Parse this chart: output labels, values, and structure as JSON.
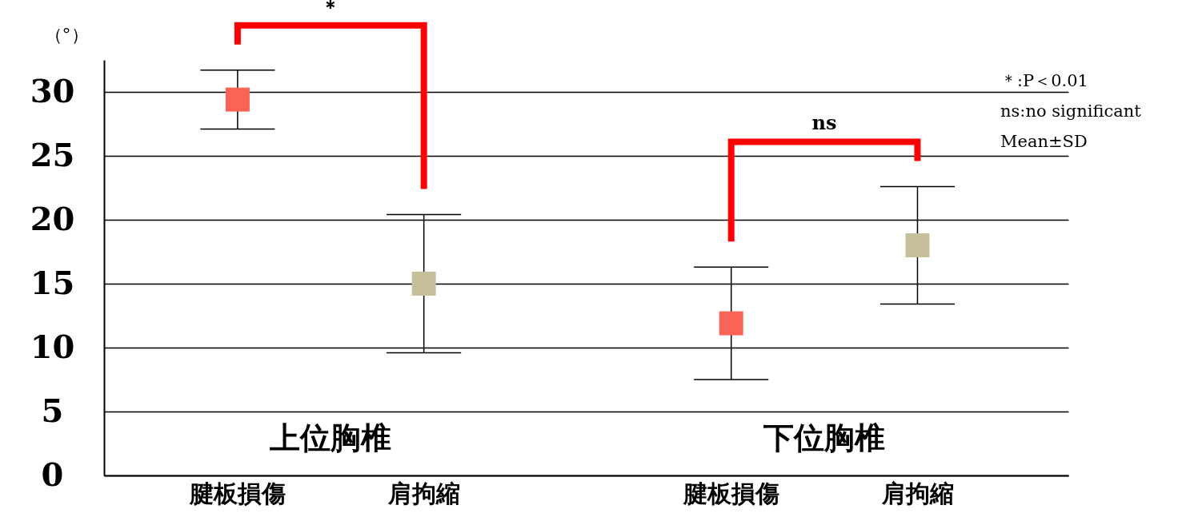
{
  "chart_data": {
    "type": "scatter",
    "marker": "square",
    "ylabel": "（°）",
    "categories": [
      "腱板損傷",
      "肩拘縮",
      "腱板損傷",
      "肩拘縮"
    ],
    "values": [
      29.4,
      15.0,
      11.9,
      18.0
    ],
    "errors": [
      2.3,
      5.4,
      4.4,
      4.6
    ],
    "colors": [
      "#fb6356",
      "#c6bf9a",
      "#fb6356",
      "#c6bf9a"
    ],
    "ylim": [
      0,
      32.5
    ],
    "yticks": [
      0,
      5,
      10,
      15,
      20,
      25,
      30
    ],
    "grid": "y",
    "annotations": [
      "＊",
      "ns",
      "上位胸椎",
      "下位胸椎",
      "＊:P＜0.01",
      "ns:no significant",
      "Mean±SD"
    ]
  }
}
